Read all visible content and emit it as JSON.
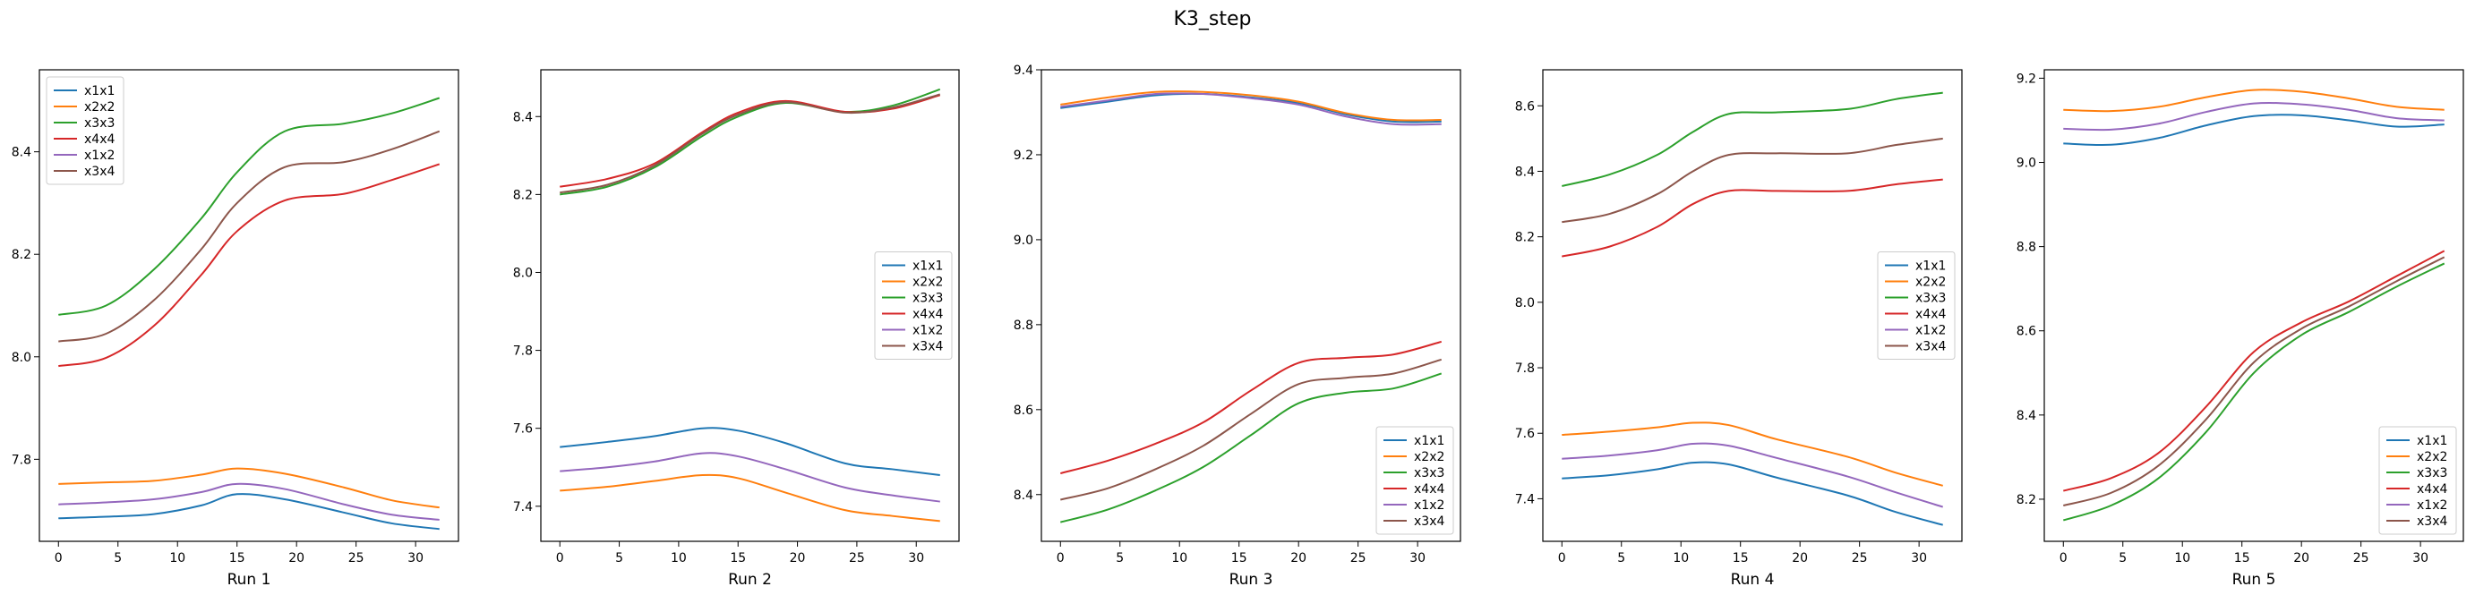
{
  "figure": {
    "title": "K3_step"
  },
  "chart_data": [
    {
      "type": "line",
      "title": "",
      "xlabel": "Run 1",
      "ylabel": "",
      "xlim": [
        -1.6,
        33.6
      ],
      "ylim": [
        7.64,
        8.56
      ],
      "xticks": [
        0,
        5,
        10,
        15,
        20,
        25,
        30
      ],
      "yticks": [
        7.8,
        8.0,
        8.2,
        8.4
      ],
      "legend_position": "upper-left",
      "x": [
        0,
        4,
        8,
        12,
        15,
        19,
        24,
        28,
        32
      ],
      "series": [
        {
          "name": "x1x1",
          "color": "#1f77b4",
          "values": [
            7.685,
            7.688,
            7.693,
            7.71,
            7.732,
            7.722,
            7.696,
            7.675,
            7.664
          ]
        },
        {
          "name": "x2x2",
          "color": "#ff7f0e",
          "values": [
            7.752,
            7.755,
            7.758,
            7.77,
            7.782,
            7.772,
            7.745,
            7.72,
            7.706
          ]
        },
        {
          "name": "x3x3",
          "color": "#2ca02c",
          "values": [
            8.082,
            8.1,
            8.17,
            8.27,
            8.36,
            8.44,
            8.455,
            8.475,
            8.505
          ]
        },
        {
          "name": "x4x4",
          "color": "#d62728",
          "values": [
            7.982,
            7.998,
            8.06,
            8.16,
            8.245,
            8.305,
            8.318,
            8.345,
            8.376
          ]
        },
        {
          "name": "x1x2",
          "color": "#9467bd",
          "values": [
            7.712,
            7.716,
            7.722,
            7.736,
            7.752,
            7.742,
            7.712,
            7.692,
            7.682
          ]
        },
        {
          "name": "x3x4",
          "color": "#8c564b",
          "values": [
            8.03,
            8.045,
            8.11,
            8.21,
            8.3,
            8.37,
            8.38,
            8.405,
            8.44
          ]
        }
      ]
    },
    {
      "type": "line",
      "title": "",
      "xlabel": "Run 2",
      "ylabel": "",
      "xlim": [
        -1.6,
        33.6
      ],
      "ylim": [
        7.31,
        8.52
      ],
      "xticks": [
        0,
        5,
        10,
        15,
        20,
        25,
        30
      ],
      "yticks": [
        7.4,
        7.6,
        7.8,
        8.0,
        8.2,
        8.4
      ],
      "legend_position": "center-right",
      "x": [
        0,
        4,
        8,
        12,
        15,
        19,
        24,
        28,
        32
      ],
      "series": [
        {
          "name": "x1x1",
          "color": "#1f77b4",
          "values": [
            7.552,
            7.565,
            7.58,
            7.6,
            7.594,
            7.562,
            7.51,
            7.495,
            7.48
          ]
        },
        {
          "name": "x2x2",
          "color": "#ff7f0e",
          "values": [
            7.44,
            7.45,
            7.465,
            7.48,
            7.472,
            7.435,
            7.39,
            7.375,
            7.362
          ]
        },
        {
          "name": "x3x3",
          "color": "#2ca02c",
          "values": [
            8.2,
            8.22,
            8.27,
            8.35,
            8.4,
            8.435,
            8.412,
            8.428,
            8.47
          ]
        },
        {
          "name": "x4x4",
          "color": "#d62728",
          "values": [
            8.22,
            8.24,
            8.28,
            8.36,
            8.41,
            8.44,
            8.412,
            8.42,
            8.455
          ]
        },
        {
          "name": "x1x2",
          "color": "#9467bd",
          "values": [
            7.49,
            7.5,
            7.515,
            7.536,
            7.528,
            7.495,
            7.448,
            7.428,
            7.412
          ]
        },
        {
          "name": "x3x4",
          "color": "#8c564b",
          "values": [
            8.205,
            8.225,
            8.275,
            8.356,
            8.405,
            8.437,
            8.41,
            8.423,
            8.457
          ]
        }
      ]
    },
    {
      "type": "line",
      "title": "",
      "xlabel": "Run 3",
      "ylabel": "",
      "xlim": [
        -1.6,
        33.6
      ],
      "ylim": [
        8.29,
        9.4
      ],
      "xticks": [
        0,
        5,
        10,
        15,
        20,
        25,
        30
      ],
      "yticks": [
        8.4,
        8.6,
        8.8,
        9.0,
        9.2,
        9.4
      ],
      "legend_position": "lower-right",
      "x": [
        0,
        4,
        8,
        12,
        16,
        20,
        24,
        28,
        32
      ],
      "series": [
        {
          "name": "x1x1",
          "color": "#1f77b4",
          "values": [
            9.31,
            9.325,
            9.34,
            9.343,
            9.335,
            9.322,
            9.295,
            9.278,
            9.278
          ]
        },
        {
          "name": "x2x2",
          "color": "#ff7f0e",
          "values": [
            9.318,
            9.335,
            9.348,
            9.348,
            9.34,
            9.325,
            9.298,
            9.282,
            9.282
          ]
        },
        {
          "name": "x3x3",
          "color": "#2ca02c",
          "values": [
            8.335,
            8.365,
            8.41,
            8.465,
            8.54,
            8.615,
            8.64,
            8.65,
            8.685
          ]
        },
        {
          "name": "x4x4",
          "color": "#d62728",
          "values": [
            8.45,
            8.48,
            8.52,
            8.57,
            8.645,
            8.71,
            8.722,
            8.73,
            8.76
          ]
        },
        {
          "name": "x1x2",
          "color": "#9467bd",
          "values": [
            9.313,
            9.328,
            9.343,
            9.343,
            9.333,
            9.318,
            9.29,
            9.272,
            9.272
          ]
        },
        {
          "name": "x3x4",
          "color": "#8c564b",
          "values": [
            8.388,
            8.415,
            8.46,
            8.515,
            8.59,
            8.66,
            8.675,
            8.685,
            8.718
          ]
        }
      ]
    },
    {
      "type": "line",
      "title": "",
      "xlabel": "Run 4",
      "ylabel": "",
      "xlim": [
        -1.6,
        33.6
      ],
      "ylim": [
        7.27,
        8.71
      ],
      "xticks": [
        0,
        5,
        10,
        15,
        20,
        25,
        30
      ],
      "yticks": [
        7.4,
        7.6,
        7.8,
        8.0,
        8.2,
        8.4,
        8.6
      ],
      "legend_position": "center-right",
      "x": [
        0,
        4,
        8,
        11,
        14,
        18,
        24,
        28,
        32
      ],
      "series": [
        {
          "name": "x1x1",
          "color": "#1f77b4",
          "values": [
            7.462,
            7.472,
            7.49,
            7.51,
            7.505,
            7.465,
            7.41,
            7.36,
            7.32
          ]
        },
        {
          "name": "x2x2",
          "color": "#ff7f0e",
          "values": [
            7.595,
            7.605,
            7.618,
            7.632,
            7.625,
            7.582,
            7.528,
            7.48,
            7.44
          ]
        },
        {
          "name": "x3x3",
          "color": "#2ca02c",
          "values": [
            8.355,
            8.39,
            8.45,
            8.52,
            8.575,
            8.58,
            8.59,
            8.62,
            8.64
          ]
        },
        {
          "name": "x4x4",
          "color": "#d62728",
          "values": [
            8.14,
            8.17,
            8.23,
            8.3,
            8.34,
            8.34,
            8.34,
            8.36,
            8.375
          ]
        },
        {
          "name": "x1x2",
          "color": "#9467bd",
          "values": [
            7.522,
            7.532,
            7.548,
            7.568,
            7.562,
            7.525,
            7.468,
            7.42,
            7.375
          ]
        },
        {
          "name": "x3x4",
          "color": "#8c564b",
          "values": [
            8.245,
            8.27,
            8.33,
            8.4,
            8.45,
            8.455,
            8.455,
            8.48,
            8.5
          ]
        }
      ]
    },
    {
      "type": "line",
      "title": "",
      "xlabel": "Run 5",
      "ylabel": "",
      "xlim": [
        -1.6,
        33.6
      ],
      "ylim": [
        8.1,
        9.22
      ],
      "xticks": [
        0,
        5,
        10,
        15,
        20,
        25,
        30
      ],
      "yticks": [
        8.2,
        8.4,
        8.6,
        8.8,
        9.0,
        9.2
      ],
      "legend_position": "lower-right",
      "x": [
        0,
        4,
        8,
        12,
        16,
        20,
        24,
        28,
        32
      ],
      "series": [
        {
          "name": "x1x1",
          "color": "#1f77b4",
          "values": [
            9.045,
            9.042,
            9.058,
            9.088,
            9.11,
            9.112,
            9.1,
            9.085,
            9.09
          ]
        },
        {
          "name": "x2x2",
          "color": "#ff7f0e",
          "values": [
            9.125,
            9.122,
            9.132,
            9.155,
            9.172,
            9.168,
            9.152,
            9.132,
            9.125
          ]
        },
        {
          "name": "x3x3",
          "color": "#2ca02c",
          "values": [
            8.15,
            8.185,
            8.25,
            8.36,
            8.5,
            8.59,
            8.645,
            8.705,
            8.76
          ]
        },
        {
          "name": "x4x4",
          "color": "#d62728",
          "values": [
            8.22,
            8.25,
            8.31,
            8.42,
            8.55,
            8.62,
            8.67,
            8.73,
            8.79
          ]
        },
        {
          "name": "x1x2",
          "color": "#9467bd",
          "values": [
            9.08,
            9.078,
            9.092,
            9.12,
            9.14,
            9.138,
            9.125,
            9.105,
            9.1
          ]
        },
        {
          "name": "x3x4",
          "color": "#8c564b",
          "values": [
            8.185,
            8.215,
            8.28,
            8.39,
            8.525,
            8.605,
            8.658,
            8.718,
            8.775
          ]
        }
      ]
    }
  ]
}
